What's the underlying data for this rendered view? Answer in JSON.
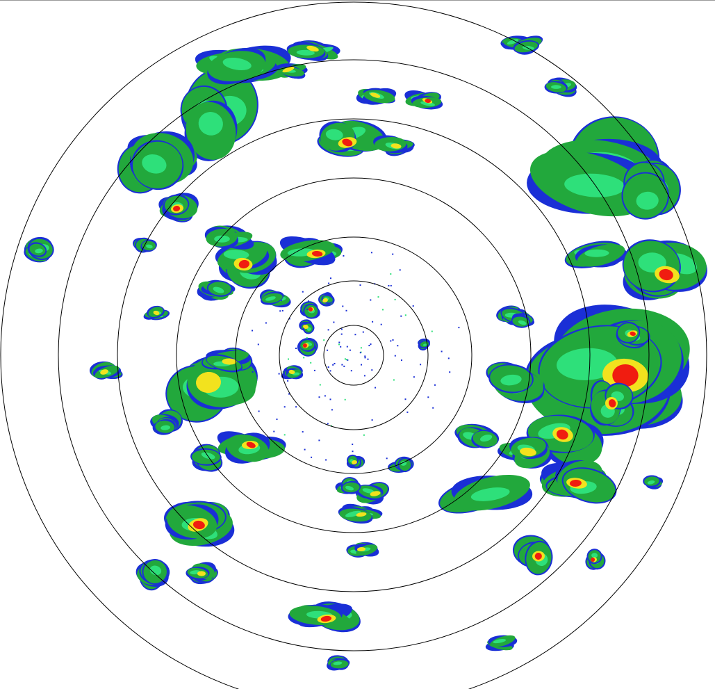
{
  "radar": {
    "range_rings": 7,
    "colors": {
      "ring": "#000000",
      "weak": "#1a2fd6",
      "light": "#2ee07a",
      "moderate": "#22a83c",
      "heavy": "#f2e21e",
      "intense": "#f01c10",
      "background": "#ffffff"
    }
  }
}
